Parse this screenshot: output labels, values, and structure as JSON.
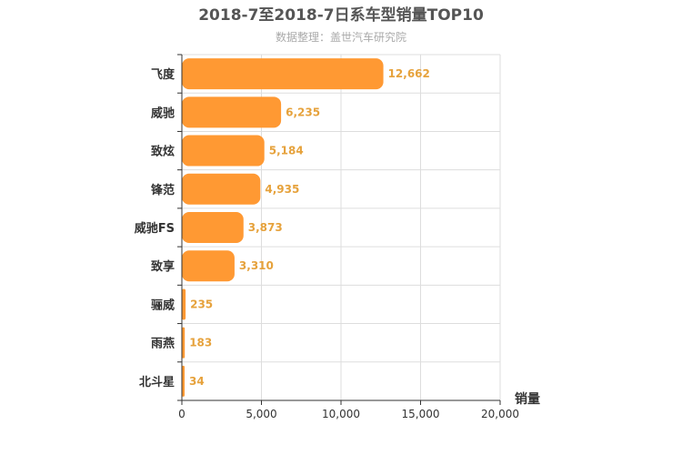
{
  "chart_data": {
    "type": "bar",
    "orientation": "horizontal",
    "title": "2018-7至2018-7日系车型销量TOP10",
    "subtitle": "数据整理：盖世汽车研究院",
    "xlabel": "销量",
    "ylabel": "",
    "categories": [
      "飞度",
      "威驰",
      "致炫",
      "锋范",
      "威驰FS",
      "致享",
      "骊威",
      "雨燕",
      "北斗星"
    ],
    "values": [
      12662,
      6235,
      5184,
      4935,
      3873,
      3310,
      235,
      183,
      34
    ],
    "value_labels": [
      "12,662",
      "6,235",
      "5,184",
      "4,935",
      "3,873",
      "3,310",
      "235",
      "183",
      "34"
    ],
    "xlim": [
      0,
      20000
    ],
    "xticks": [
      0,
      5000,
      10000,
      15000,
      20000
    ],
    "xtick_labels": [
      "0",
      "5,000",
      "10,000",
      "15,000",
      "20,000"
    ],
    "grid": true,
    "legend": "none",
    "colors": {
      "bar": "#ff9933",
      "value_label": "#e6a23c",
      "grid": "#dddddd",
      "axis": "#333333"
    }
  }
}
